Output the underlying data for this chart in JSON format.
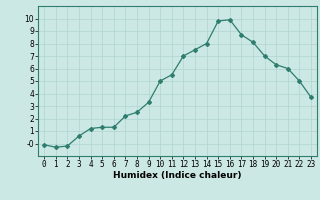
{
  "x": [
    0,
    1,
    2,
    3,
    4,
    5,
    6,
    7,
    8,
    9,
    10,
    11,
    12,
    13,
    14,
    15,
    16,
    17,
    18,
    19,
    20,
    21,
    22,
    23
  ],
  "y": [
    -0.1,
    -0.3,
    -0.2,
    0.6,
    1.2,
    1.3,
    1.3,
    2.2,
    2.5,
    3.3,
    5.0,
    5.5,
    7.0,
    7.5,
    8.0,
    9.8,
    9.9,
    8.7,
    8.1,
    7.0,
    6.3,
    6.0,
    5.0,
    3.7
  ],
  "line_color": "#2e7d6e",
  "marker": "D",
  "marker_size": 2.0,
  "linewidth": 0.9,
  "xlabel": "Humidex (Indice chaleur)",
  "xlim": [
    -0.5,
    23.5
  ],
  "ylim": [
    -1,
    11
  ],
  "yticks": [
    0,
    1,
    2,
    3,
    4,
    5,
    6,
    7,
    8,
    9,
    10
  ],
  "ytick_labels": [
    "-0",
    "1",
    "2",
    "3",
    "4",
    "5",
    "6",
    "7",
    "8",
    "9",
    "10"
  ],
  "xticks": [
    0,
    1,
    2,
    3,
    4,
    5,
    6,
    7,
    8,
    9,
    10,
    11,
    12,
    13,
    14,
    15,
    16,
    17,
    18,
    19,
    20,
    21,
    22,
    23
  ],
  "bg_color": "#cce8e4",
  "grid_color": "#b0d4d0",
  "grid_linewidth": 0.5,
  "xlabel_fontsize": 6.5,
  "tick_fontsize": 5.5
}
